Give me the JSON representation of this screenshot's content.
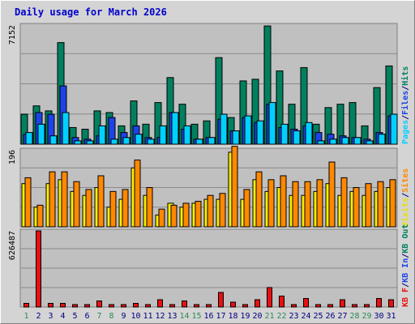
{
  "chart_data": {
    "type": "bar",
    "title": "Daily usage for March 2026",
    "days": [
      "1",
      "2",
      "3",
      "4",
      "5",
      "6",
      "7",
      "8",
      "9",
      "10",
      "11",
      "12",
      "13",
      "14",
      "15",
      "16",
      "17",
      "18",
      "19",
      "20",
      "21",
      "22",
      "23",
      "24",
      "25",
      "26",
      "27",
      "28",
      "29",
      "30",
      "31"
    ],
    "weekend_days": [
      1,
      7,
      8,
      14,
      15,
      21,
      22,
      28,
      29
    ],
    "colors": {
      "background": "#c0c0c0",
      "frame": "#d4d4d4",
      "title": "#0000cc",
      "weekend_tick": "#2e8b57",
      "weekday_tick": "#000080",
      "hits": "#00805f",
      "files": "#1d43e8",
      "pages": "#00d0ff",
      "visits": "#f8f000",
      "sites": "#ff8800",
      "kbf": "#e81010"
    },
    "panels": [
      {
        "id": "hits-files-pages",
        "ymax_label": "7152",
        "ymax": 7152,
        "gridlines": 3,
        "legend": [
          {
            "text": "Pages",
            "color": "#00d0ff"
          },
          {
            "text": "/",
            "color": "#000080"
          },
          {
            "text": "Files",
            "color": "#1d43e8"
          },
          {
            "text": "/",
            "color": "#000080"
          },
          {
            "text": "Hits",
            "color": "#00805f"
          }
        ],
        "series": [
          {
            "name": "Hits",
            "color": "#00805f",
            "values": [
              1800,
              2300,
              2000,
              6100,
              1000,
              900,
              2000,
              1900,
              1100,
              2600,
              1200,
              2500,
              4000,
              2400,
              1200,
              1400,
              5200,
              1600,
              3800,
              3900,
              7100,
              4400,
              2400,
              4600,
              1200,
              2200,
              2400,
              2500,
              1100,
              3400,
              4700
            ]
          },
          {
            "name": "Files",
            "color": "#1d43e8",
            "values": [
              600,
              1900,
              1800,
              3500,
              400,
              300,
              500,
              1600,
              700,
              1100,
              400,
              400,
              1900,
              900,
              300,
              400,
              1500,
              800,
              1600,
              1300,
              2400,
              1000,
              900,
              1100,
              700,
              600,
              500,
              400,
              300,
              700,
              1700
            ]
          },
          {
            "name": "Pages",
            "color": "#00d0ff",
            "values": [
              700,
              1200,
              500,
              1900,
              200,
              200,
              1100,
              300,
              400,
              600,
              300,
              1100,
              1900,
              1100,
              300,
              400,
              1800,
              800,
              1700,
              1400,
              2500,
              1200,
              800,
              1300,
              200,
              300,
              400,
              400,
              200,
              600,
              1800
            ]
          }
        ]
      },
      {
        "id": "visits-sites",
        "ymax_label": "196",
        "ymax": 196,
        "gridlines": 3,
        "legend": [
          {
            "text": "Visits",
            "color": "#e8e000"
          },
          {
            "text": "/",
            "color": "#000080"
          },
          {
            "text": "Sites",
            "color": "#ff8800"
          }
        ],
        "series": [
          {
            "name": "Visits",
            "color": "#f8f000",
            "values": [
              110,
              50,
              110,
              120,
              90,
              80,
              100,
              50,
              70,
              150,
              80,
              30,
              60,
              50,
              60,
              70,
              70,
              190,
              70,
              120,
              90,
              100,
              80,
              80,
              90,
              110,
              80,
              90,
              80,
              90,
              100
            ]
          },
          {
            "name": "Sites",
            "color": "#ff8800",
            "values": [
              125,
              55,
              140,
              140,
              115,
              95,
              130,
              90,
              95,
              170,
              100,
              45,
              55,
              60,
              65,
              80,
              85,
              205,
              95,
              140,
              120,
              130,
              115,
              115,
              120,
              165,
              125,
              100,
              110,
              115,
              120
            ]
          }
        ]
      },
      {
        "id": "kb",
        "ymax_label": "626487",
        "ymax": 626487,
        "gridlines": 3,
        "legend": [
          {
            "text": "KB F",
            "color": "#e81010"
          },
          {
            "text": "/",
            "color": "#000080"
          },
          {
            "text": "KB In",
            "color": "#1d43e8"
          },
          {
            "text": "/",
            "color": "#000080"
          },
          {
            "text": "KB Out",
            "color": "#00805f"
          }
        ],
        "series": [
          {
            "name": "KB F",
            "color": "#e81010",
            "values": [
              30000,
              626487,
              30000,
              30000,
              20000,
              20000,
              50000,
              20000,
              20000,
              30000,
              20000,
              60000,
              20000,
              50000,
              20000,
              20000,
              120000,
              40000,
              20000,
              60000,
              160000,
              90000,
              20000,
              70000,
              20000,
              20000,
              60000,
              20000,
              20000,
              70000,
              60000
            ]
          }
        ]
      }
    ]
  }
}
